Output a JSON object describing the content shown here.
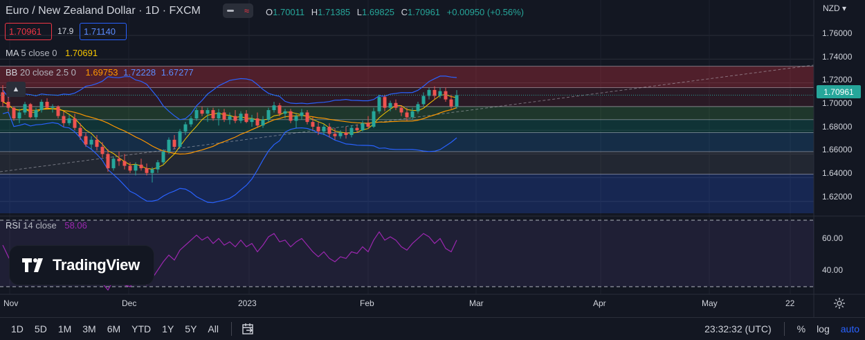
{
  "header": {
    "title": "Euro / New Zealand Dollar · 1D · FXCM",
    "ohlc": [
      {
        "k": "O",
        "v": "1.70011"
      },
      {
        "k": "H",
        "v": "1.71385"
      },
      {
        "k": "L",
        "v": "1.69825"
      },
      {
        "k": "C",
        "v": "1.70961"
      }
    ],
    "change": "+0.00950 (+0.56%)",
    "sell_price": "1.70961",
    "spread": "17.9",
    "buy_price": "1.71140"
  },
  "indicators": {
    "ma": {
      "name": "MA",
      "params": "5 close 0",
      "value": "1.70691",
      "color": "#f7c600"
    },
    "bb": {
      "name": "BB",
      "params": "20 close 2.5 0",
      "basis": "1.69753",
      "upper": "1.72228",
      "lower": "1.67277",
      "basis_color": "#ff9800",
      "band_color": "#2962ff"
    },
    "rsi": {
      "name": "RSI",
      "params": "14 close",
      "value": "58.06",
      "color": "#9c27b0"
    }
  },
  "price_axis": {
    "currency": "NZD",
    "labels": [
      "1.76000",
      "1.74000",
      "1.72000",
      "1.70000",
      "1.68000",
      "1.66000",
      "1.64000",
      "1.62000"
    ],
    "current": "1.70961"
  },
  "rsi_axis": {
    "labels": [
      "60.00",
      "40.00"
    ]
  },
  "time_axis": {
    "labels": [
      "Nov",
      "Dec",
      "2023",
      "Feb",
      "Mar",
      "Apr",
      "May",
      "22"
    ]
  },
  "logo": {
    "text": "TradingView"
  },
  "toolbar": {
    "ranges": [
      "1D",
      "5D",
      "1M",
      "3M",
      "6M",
      "YTD",
      "1Y",
      "5Y",
      "All"
    ],
    "time": "23:32:32 (UTC)",
    "percent": "%",
    "log": "log",
    "auto": "auto"
  },
  "colors": {
    "up": "#26a69a",
    "down": "#ef5350",
    "background": "#131722",
    "grid": "#2a2e39"
  },
  "chart_data": {
    "type": "candlestick",
    "series": [
      {
        "name": "EUR/NZD",
        "type": "ohlc",
        "values": [
          [
            1.712,
            1.718,
            1.7,
            1.704
          ],
          [
            1.704,
            1.709,
            1.696,
            1.699
          ],
          [
            1.699,
            1.7,
            1.688,
            1.69
          ],
          [
            1.69,
            1.698,
            1.686,
            1.695
          ],
          [
            1.695,
            1.704,
            1.693,
            1.702
          ],
          [
            1.702,
            1.703,
            1.69,
            1.691
          ],
          [
            1.691,
            1.699,
            1.689,
            1.697
          ],
          [
            1.697,
            1.706,
            1.695,
            1.704
          ],
          [
            1.704,
            1.707,
            1.698,
            1.699
          ],
          [
            1.699,
            1.702,
            1.695,
            1.7
          ],
          [
            1.7,
            1.701,
            1.69,
            1.692
          ],
          [
            1.692,
            1.696,
            1.683,
            1.686
          ],
          [
            1.686,
            1.693,
            1.684,
            1.69
          ],
          [
            1.69,
            1.694,
            1.68,
            1.682
          ],
          [
            1.682,
            1.686,
            1.672,
            1.675
          ],
          [
            1.675,
            1.678,
            1.666,
            1.668
          ],
          [
            1.668,
            1.675,
            1.664,
            1.672
          ],
          [
            1.672,
            1.676,
            1.663,
            1.666
          ],
          [
            1.666,
            1.67,
            1.657,
            1.66
          ],
          [
            1.66,
            1.664,
            1.645,
            1.648
          ],
          [
            1.648,
            1.658,
            1.646,
            1.656
          ],
          [
            1.656,
            1.662,
            1.65,
            1.654
          ],
          [
            1.654,
            1.66,
            1.647,
            1.65
          ],
          [
            1.65,
            1.653,
            1.644,
            1.646
          ],
          [
            1.646,
            1.653,
            1.642,
            1.651
          ],
          [
            1.651,
            1.656,
            1.646,
            1.648
          ],
          [
            1.648,
            1.652,
            1.642,
            1.644
          ],
          [
            1.644,
            1.649,
            1.636,
            1.647
          ],
          [
            1.647,
            1.655,
            1.644,
            1.653
          ],
          [
            1.653,
            1.664,
            1.651,
            1.662
          ],
          [
            1.662,
            1.674,
            1.66,
            1.672
          ],
          [
            1.672,
            1.676,
            1.664,
            1.666
          ],
          [
            1.666,
            1.681,
            1.665,
            1.679
          ],
          [
            1.679,
            1.687,
            1.676,
            1.685
          ],
          [
            1.685,
            1.692,
            1.683,
            1.69
          ],
          [
            1.69,
            1.699,
            1.688,
            1.697
          ],
          [
            1.697,
            1.7,
            1.692,
            1.694
          ],
          [
            1.694,
            1.699,
            1.687,
            1.697
          ],
          [
            1.697,
            1.699,
            1.688,
            1.69
          ],
          [
            1.69,
            1.698,
            1.684,
            1.695
          ],
          [
            1.695,
            1.698,
            1.687,
            1.689
          ],
          [
            1.689,
            1.695,
            1.685,
            1.692
          ],
          [
            1.692,
            1.697,
            1.686,
            1.688
          ],
          [
            1.688,
            1.696,
            1.686,
            1.694
          ],
          [
            1.694,
            1.697,
            1.686,
            1.687
          ],
          [
            1.687,
            1.693,
            1.683,
            1.69
          ],
          [
            1.69,
            1.695,
            1.682,
            1.684
          ],
          [
            1.684,
            1.692,
            1.682,
            1.689
          ],
          [
            1.689,
            1.699,
            1.687,
            1.697
          ],
          [
            1.697,
            1.704,
            1.695,
            1.701
          ],
          [
            1.701,
            1.703,
            1.692,
            1.694
          ],
          [
            1.694,
            1.698,
            1.69,
            1.696
          ],
          [
            1.696,
            1.698,
            1.686,
            1.688
          ],
          [
            1.688,
            1.694,
            1.682,
            1.692
          ],
          [
            1.692,
            1.698,
            1.689,
            1.695
          ],
          [
            1.695,
            1.697,
            1.685,
            1.687
          ],
          [
            1.687,
            1.691,
            1.68,
            1.683
          ],
          [
            1.683,
            1.687,
            1.676,
            1.679
          ],
          [
            1.679,
            1.685,
            1.676,
            1.683
          ],
          [
            1.683,
            1.686,
            1.674,
            1.677
          ],
          [
            1.677,
            1.682,
            1.672,
            1.675
          ],
          [
            1.675,
            1.68,
            1.673,
            1.678
          ],
          [
            1.678,
            1.683,
            1.673,
            1.676
          ],
          [
            1.676,
            1.684,
            1.674,
            1.682
          ],
          [
            1.682,
            1.685,
            1.678,
            1.68
          ],
          [
            1.68,
            1.688,
            1.679,
            1.686
          ],
          [
            1.686,
            1.692,
            1.681,
            1.683
          ],
          [
            1.683,
            1.699,
            1.682,
            1.696
          ],
          [
            1.696,
            1.71,
            1.694,
            1.708
          ],
          [
            1.708,
            1.71,
            1.696,
            1.699
          ],
          [
            1.699,
            1.705,
            1.696,
            1.703
          ],
          [
            1.703,
            1.706,
            1.697,
            1.699
          ],
          [
            1.699,
            1.701,
            1.692,
            1.695
          ],
          [
            1.695,
            1.699,
            1.688,
            1.691
          ],
          [
            1.691,
            1.699,
            1.689,
            1.696
          ],
          [
            1.696,
            1.704,
            1.694,
            1.702
          ],
          [
            1.702,
            1.712,
            1.7,
            1.709
          ],
          [
            1.709,
            1.716,
            1.706,
            1.714
          ],
          [
            1.714,
            1.717,
            1.706,
            1.709
          ],
          [
            1.709,
            1.716,
            1.707,
            1.713
          ],
          [
            1.713,
            1.716,
            1.704,
            1.706
          ],
          [
            1.706,
            1.71,
            1.698,
            1.7001
          ],
          [
            1.7001,
            1.71385,
            1.69825,
            1.70961
          ]
        ]
      }
    ],
    "price_range": [
      1.61,
      1.77
    ],
    "rsi": [
      55,
      48,
      42,
      44,
      50,
      45,
      48,
      54,
      50,
      51,
      46,
      41,
      44,
      40,
      36,
      33,
      37,
      35,
      32,
      28,
      34,
      33,
      31,
      30,
      34,
      33,
      31,
      35,
      40,
      45,
      49,
      46,
      52,
      55,
      58,
      61,
      58,
      60,
      56,
      59,
      55,
      57,
      54,
      58,
      54,
      56,
      51,
      55,
      60,
      62,
      57,
      58,
      54,
      57,
      59,
      55,
      51,
      48,
      51,
      47,
      45,
      48,
      47,
      51,
      50,
      54,
      51,
      58,
      63,
      58,
      60,
      58,
      54,
      52,
      56,
      59,
      62,
      60,
      56,
      59,
      53,
      51,
      58.06
    ],
    "rsi_range": [
      30,
      70
    ],
    "rsi_levels": [
      70,
      30
    ],
    "time_labels": [
      "Nov",
      "Dec",
      "2023",
      "Feb",
      "Mar",
      "Apr",
      "May",
      "22"
    ],
    "grid": true,
    "legend": "top-left"
  }
}
